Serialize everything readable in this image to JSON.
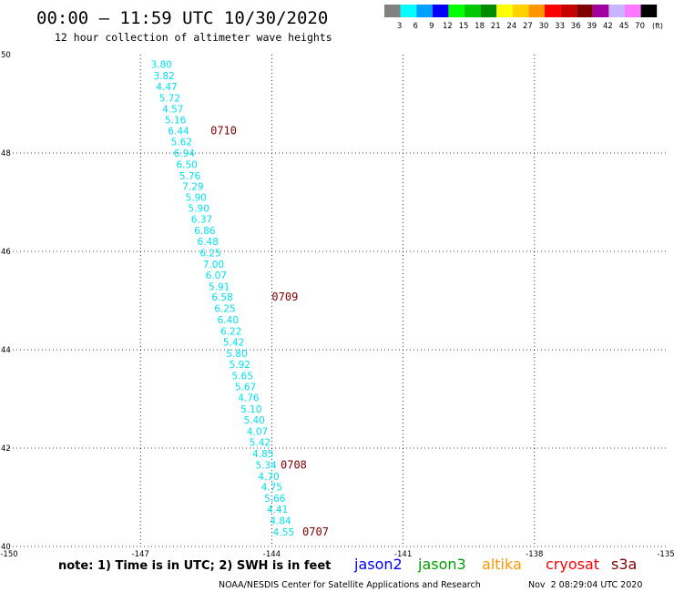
{
  "header": {
    "title": "00:00 – 11:59 UTC 10/30/2020",
    "subtitle": "12 hour collection of altimeter wave heights"
  },
  "legend": {
    "unit": "(ft)",
    "bins": [
      {
        "label": "3",
        "color": "#808080"
      },
      {
        "label": "6",
        "color": "#00ffff"
      },
      {
        "label": "9",
        "color": "#00a0ff"
      },
      {
        "label": "12",
        "color": "#0000ff"
      },
      {
        "label": "15",
        "color": "#00ff00"
      },
      {
        "label": "18",
        "color": "#00c800"
      },
      {
        "label": "21",
        "color": "#008c00"
      },
      {
        "label": "24",
        "color": "#ffff00"
      },
      {
        "label": "27",
        "color": "#ffd200"
      },
      {
        "label": "30",
        "color": "#ff9600"
      },
      {
        "label": "33",
        "color": "#ff0000"
      },
      {
        "label": "36",
        "color": "#c80000"
      },
      {
        "label": "39",
        "color": "#800000"
      },
      {
        "label": "42",
        "color": "#a000a0"
      },
      {
        "label": "45",
        "color": "#c8b4ff"
      },
      {
        "label": "70",
        "color": "#ff78ff"
      },
      {
        "label": "",
        "color": "#000000"
      }
    ]
  },
  "footer": {
    "note": "note: 1) Time is in UTC; 2) SWH is in feet",
    "satellites": [
      {
        "label": "jason2",
        "color": "#0000ff"
      },
      {
        "label": "jason3",
        "color": "#00a000"
      },
      {
        "label": "altika",
        "color": "#ff9600"
      },
      {
        "label": "cryosat",
        "color": "#ff0000"
      },
      {
        "label": "s3a",
        "color": "#800000"
      }
    ],
    "credit": "NOAA/NESDIS Center for Satellite Applications and Research",
    "timestamp": "Nov  2 08:29:04 UTC 2020"
  },
  "chart_data": {
    "type": "scatter",
    "xlim": [
      -150,
      -135
    ],
    "ylim": [
      40,
      50
    ],
    "x_ticks": [
      "-150",
      "-147",
      "-144",
      "-141",
      "-138",
      "-135"
    ],
    "y_ticks": [
      "40",
      "42",
      "44",
      "46",
      "48",
      "50"
    ],
    "grid": true,
    "value_color": "#00e0f0",
    "time_color": "#800000",
    "points": [
      {
        "lon": -146.52,
        "lat": 49.81,
        "value": "3.80"
      },
      {
        "lon": -146.46,
        "lat": 49.57,
        "value": "3.82"
      },
      {
        "lon": -146.4,
        "lat": 49.35,
        "value": "4.47"
      },
      {
        "lon": -146.33,
        "lat": 49.12,
        "value": "5.72"
      },
      {
        "lon": -146.26,
        "lat": 48.9,
        "value": "4.57"
      },
      {
        "lon": -146.2,
        "lat": 48.68,
        "value": "5.16"
      },
      {
        "lon": -146.13,
        "lat": 48.45,
        "value": "6.44"
      },
      {
        "lon": -146.06,
        "lat": 48.23,
        "value": "5.62"
      },
      {
        "lon": -146.0,
        "lat": 48.0,
        "value": "6.94"
      },
      {
        "lon": -145.94,
        "lat": 47.77,
        "value": "6.50"
      },
      {
        "lon": -145.87,
        "lat": 47.54,
        "value": "5.76"
      },
      {
        "lon": -145.8,
        "lat": 47.32,
        "value": "7.29"
      },
      {
        "lon": -145.73,
        "lat": 47.1,
        "value": "5.90"
      },
      {
        "lon": -145.67,
        "lat": 46.88,
        "value": "5.90"
      },
      {
        "lon": -145.6,
        "lat": 46.66,
        "value": "6.37"
      },
      {
        "lon": -145.53,
        "lat": 46.43,
        "value": "6.86"
      },
      {
        "lon": -145.46,
        "lat": 46.2,
        "value": "6.48"
      },
      {
        "lon": -145.4,
        "lat": 45.97,
        "value": "6.25"
      },
      {
        "lon": -145.33,
        "lat": 45.74,
        "value": "7.00"
      },
      {
        "lon": -145.27,
        "lat": 45.52,
        "value": "6.07"
      },
      {
        "lon": -145.2,
        "lat": 45.29,
        "value": "5.91"
      },
      {
        "lon": -145.13,
        "lat": 45.07,
        "value": "6.58"
      },
      {
        "lon": -145.07,
        "lat": 44.84,
        "value": "6.25"
      },
      {
        "lon": -145.0,
        "lat": 44.61,
        "value": "6.40"
      },
      {
        "lon": -144.93,
        "lat": 44.38,
        "value": "6.22"
      },
      {
        "lon": -144.87,
        "lat": 44.16,
        "value": "5.42"
      },
      {
        "lon": -144.8,
        "lat": 43.93,
        "value": "5.80"
      },
      {
        "lon": -144.73,
        "lat": 43.7,
        "value": "5.92"
      },
      {
        "lon": -144.67,
        "lat": 43.47,
        "value": "5.65"
      },
      {
        "lon": -144.6,
        "lat": 43.25,
        "value": "5.67"
      },
      {
        "lon": -144.53,
        "lat": 43.03,
        "value": "4.76"
      },
      {
        "lon": -144.47,
        "lat": 42.8,
        "value": "5.10"
      },
      {
        "lon": -144.4,
        "lat": 42.57,
        "value": "5.40"
      },
      {
        "lon": -144.33,
        "lat": 42.34,
        "value": "4.07"
      },
      {
        "lon": -144.27,
        "lat": 42.12,
        "value": "5.42"
      },
      {
        "lon": -144.2,
        "lat": 41.89,
        "value": "4.85"
      },
      {
        "lon": -144.13,
        "lat": 41.66,
        "value": "5.34"
      },
      {
        "lon": -144.07,
        "lat": 41.43,
        "value": "4.70"
      },
      {
        "lon": -144.0,
        "lat": 41.21,
        "value": "4.75"
      },
      {
        "lon": -143.93,
        "lat": 40.98,
        "value": "5.66"
      },
      {
        "lon": -143.87,
        "lat": 40.76,
        "value": "4.41"
      },
      {
        "lon": -143.8,
        "lat": 40.53,
        "value": "4.84"
      },
      {
        "lon": -143.73,
        "lat": 40.3,
        "value": "4.55"
      }
    ],
    "time_labels": [
      {
        "lon": -145.4,
        "lat": 48.45,
        "label": "0710"
      },
      {
        "lon": -144.0,
        "lat": 45.07,
        "label": "0709"
      },
      {
        "lon": -143.8,
        "lat": 41.66,
        "label": "0708"
      },
      {
        "lon": -143.3,
        "lat": 40.3,
        "label": "0707"
      }
    ]
  }
}
